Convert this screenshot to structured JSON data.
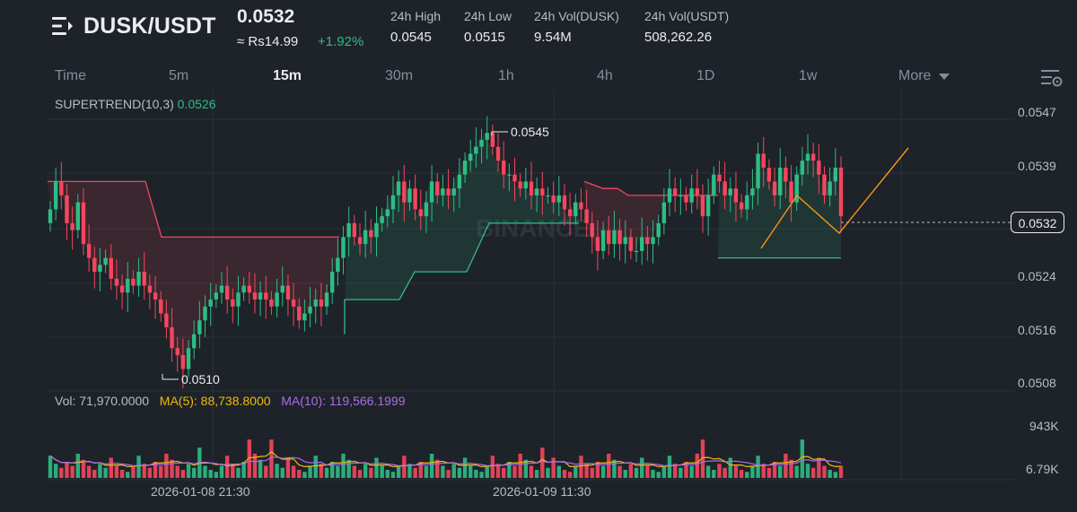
{
  "header": {
    "pair": "DUSK/USDT",
    "price": "0.0532",
    "fiat_price": "≈ Rs14.99",
    "change": "+1.92%",
    "stats": [
      {
        "label": "24h High",
        "value": "0.0545"
      },
      {
        "label": "24h Low",
        "value": "0.0515"
      },
      {
        "label": "24h Vol(DUSK)",
        "value": "9.54M"
      },
      {
        "label": "24h Vol(USDT)",
        "value": "508,262.26"
      }
    ]
  },
  "tabs": [
    "Time",
    "5m",
    "15m",
    "30m",
    "1h",
    "4h",
    "1D",
    "1w",
    "More"
  ],
  "active_tab": "15m",
  "indicator": {
    "label": "SUPERTREND(10,3)",
    "value": "0.0526"
  },
  "volume": {
    "vol_label": "Vol: 71,970.0000",
    "ma5_label": "MA(5): 88,738.8000",
    "ma10_label": "MA(10): 119,566.1999"
  },
  "price_axis": [
    "0.0547",
    "0.0539",
    "0.0532",
    "0.0524",
    "0.0516",
    "0.0508"
  ],
  "volume_axis": [
    "943K",
    "6.79K"
  ],
  "current_price_tag": "0.0532",
  "annotations": {
    "high": "0.0545",
    "low": "0.0510"
  },
  "time_axis": [
    "2026-01-08 21:30",
    "2026-01-09 11:30"
  ],
  "watermark": "BINANCE",
  "colors": {
    "up": "#2ebd85",
    "down": "#f6465d",
    "ma5": "#f0b90b",
    "ma10": "#a86ee8",
    "annotation": "#f7931a"
  },
  "icons": [
    "menu-icon",
    "chart-settings-icon",
    "caret-down-icon"
  ],
  "chart_data": {
    "type": "candlestick",
    "ylim": [
      0.0506,
      0.0549
    ],
    "high": 0.0545,
    "low": 0.051,
    "last": 0.0532,
    "supertrend_last": 0.0526,
    "closes": [
      0.0533,
      0.0537,
      0.0535,
      0.0531,
      0.053,
      0.0534,
      0.0528,
      0.0526,
      0.0524,
      0.0525,
      0.0526,
      0.0523,
      0.0522,
      0.0521,
      0.0523,
      0.0522,
      0.0524,
      0.0522,
      0.0521,
      0.052,
      0.0518,
      0.0516,
      0.0513,
      0.0512,
      0.051,
      0.0513,
      0.0515,
      0.0517,
      0.0519,
      0.052,
      0.0521,
      0.0522,
      0.052,
      0.0519,
      0.0521,
      0.0522,
      0.0521,
      0.052,
      0.0521,
      0.052,
      0.0519,
      0.0521,
      0.0522,
      0.052,
      0.0519,
      0.0517,
      0.0518,
      0.0519,
      0.052,
      0.0519,
      0.0521,
      0.0524,
      0.0526,
      0.0529,
      0.0531,
      0.0529,
      0.0528,
      0.053,
      0.0529,
      0.0531,
      0.0532,
      0.0533,
      0.0535,
      0.0537,
      0.0534,
      0.0536,
      0.0533,
      0.0532,
      0.0534,
      0.0537,
      0.0535,
      0.0536,
      0.0535,
      0.0536,
      0.0538,
      0.054,
      0.0541,
      0.0542,
      0.0543,
      0.0544,
      0.0542,
      0.054,
      0.0538,
      0.0538,
      0.0537,
      0.0536,
      0.0537,
      0.0535,
      0.0536,
      0.0535,
      0.0535,
      0.0534,
      0.0535,
      0.0533,
      0.0532,
      0.0534,
      0.0533,
      0.0531,
      0.0529,
      0.0527,
      0.053,
      0.0528,
      0.053,
      0.0528,
      0.0529,
      0.0527,
      0.0527,
      0.0529,
      0.0528,
      0.0529,
      0.0531,
      0.0534,
      0.0536,
      0.0535,
      0.0535,
      0.0534,
      0.0536,
      0.0535,
      0.0532,
      0.0535,
      0.0538,
      0.0537,
      0.0535,
      0.0536,
      0.0534,
      0.0533,
      0.0535,
      0.0536,
      0.0541,
      0.0539,
      0.0537,
      0.0535,
      0.0539,
      0.0537,
      0.0534,
      0.0538,
      0.054,
      0.0541,
      0.054,
      0.0538,
      0.0535,
      0.0537,
      0.0539,
      0.0532
    ]
  }
}
